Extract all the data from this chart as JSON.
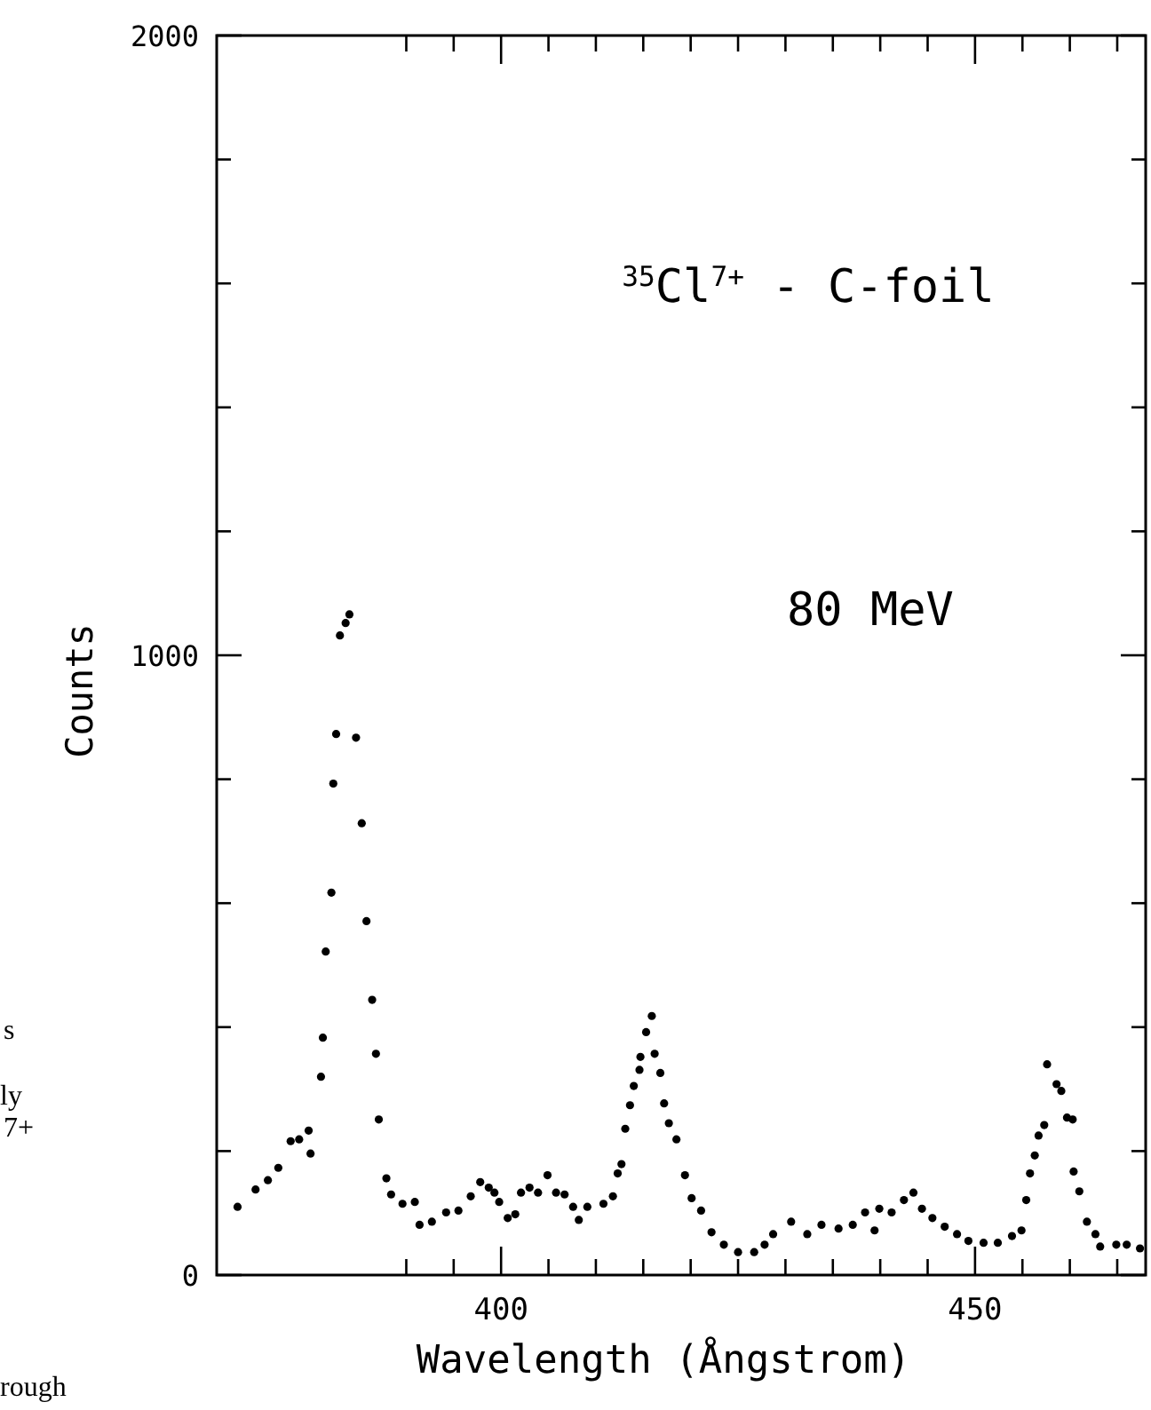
{
  "chart_data": {
    "type": "scatter",
    "title": "$^{35}$Cl$^{7+}$ - C-foil",
    "xlabel": "Wavelength (Ångstrom)",
    "ylabel": "Counts",
    "annotations": [
      "80 MeV",
      "s",
      "ly",
      "7+",
      "rough"
    ],
    "xlim": [
      370,
      468
    ],
    "xticks": [
      {
        "value": 390,
        "label": null
      },
      {
        "value": 395,
        "label": null
      },
      400,
      {
        "value": 405,
        "label": null
      },
      {
        "value": 410,
        "label": null
      },
      {
        "value": 415,
        "label": null
      },
      {
        "value": 420,
        "label": null
      },
      {
        "value": 425,
        "label": null
      },
      {
        "value": 430,
        "label": null
      },
      {
        "value": 435,
        "label": null
      },
      {
        "value": 440,
        "label": null
      },
      {
        "value": 445,
        "label": null
      },
      450,
      {
        "value": 455,
        "label": null
      },
      {
        "value": 460,
        "label": null
      },
      {
        "value": 465,
        "label": null
      }
    ],
    "ylim": [
      0,
      2000
    ],
    "yticks": [
      0,
      {
        "value": 200,
        "label": null
      },
      {
        "value": 400,
        "label": null
      },
      {
        "value": 600,
        "label": null
      },
      {
        "value": 800,
        "label": null
      },
      1000,
      {
        "value": 1200,
        "label": null
      },
      {
        "value": 1400,
        "label": null
      },
      {
        "value": 1600,
        "label": null
      },
      {
        "value": 1800,
        "label": null
      },
      2000
    ],
    "grid": false,
    "marker": "circle",
    "series": [
      {
        "color": "#000000",
        "x": [
          372.2,
          374.1,
          375.4,
          376.5,
          377.8,
          378.7,
          379.7,
          379.9,
          381.0,
          381.2,
          381.5,
          382.1,
          382.3,
          382.6,
          383.0,
          383.6,
          384.0,
          384.7,
          385.3,
          385.8,
          386.4,
          386.8,
          387.1,
          387.9,
          388.4,
          389.6,
          390.9,
          391.4,
          392.7,
          394.2,
          395.5,
          396.8,
          397.8,
          398.7,
          399.3,
          399.8,
          400.7,
          401.5,
          402.1,
          403.0,
          403.9,
          404.9,
          405.8,
          406.7,
          407.6,
          408.2,
          409.1,
          410.8,
          411.8,
          412.3,
          412.7,
          413.1,
          413.6,
          414.0,
          414.6,
          414.7,
          415.3,
          415.9,
          416.2,
          416.8,
          417.2,
          417.7,
          418.5,
          419.4,
          420.1,
          421.1,
          422.2,
          423.5,
          425.0,
          426.7,
          427.8,
          428.7,
          430.6,
          432.3,
          433.8,
          435.6,
          437.1,
          438.4,
          439.4,
          439.9,
          441.2,
          442.5,
          443.5,
          444.4,
          445.5,
          446.8,
          448.1,
          449.3,
          450.9,
          452.4,
          453.9,
          454.9,
          455.4,
          455.8,
          456.3,
          456.7,
          457.3,
          457.6,
          458.6,
          459.1,
          459.7,
          460.3,
          460.4,
          461.0,
          461.8,
          462.7,
          463.2,
          464.9,
          466.0,
          467.4
        ],
        "values": [
          110,
          138,
          153,
          173,
          216,
          219,
          233,
          196,
          320,
          383,
          522,
          617,
          793,
          873,
          1032,
          1052,
          1066,
          867,
          729,
          571,
          444,
          357,
          251,
          156,
          130,
          115,
          118,
          81,
          86,
          101,
          104,
          127,
          150,
          141,
          133,
          118,
          92,
          98,
          133,
          141,
          133,
          161,
          133,
          130,
          110,
          89,
          110,
          115,
          127,
          164,
          179,
          236,
          274,
          305,
          331,
          352,
          392,
          418,
          357,
          326,
          277,
          245,
          219,
          161,
          124,
          104,
          69,
          49,
          37,
          37,
          49,
          66,
          86,
          66,
          81,
          75,
          81,
          101,
          72,
          107,
          101,
          121,
          133,
          107,
          92,
          78,
          66,
          55,
          52,
          52,
          63,
          72,
          121,
          164,
          193,
          225,
          242,
          340,
          308,
          297,
          254,
          251,
          167,
          135,
          86,
          66,
          46,
          49,
          49,
          43
        ]
      }
    ]
  }
}
